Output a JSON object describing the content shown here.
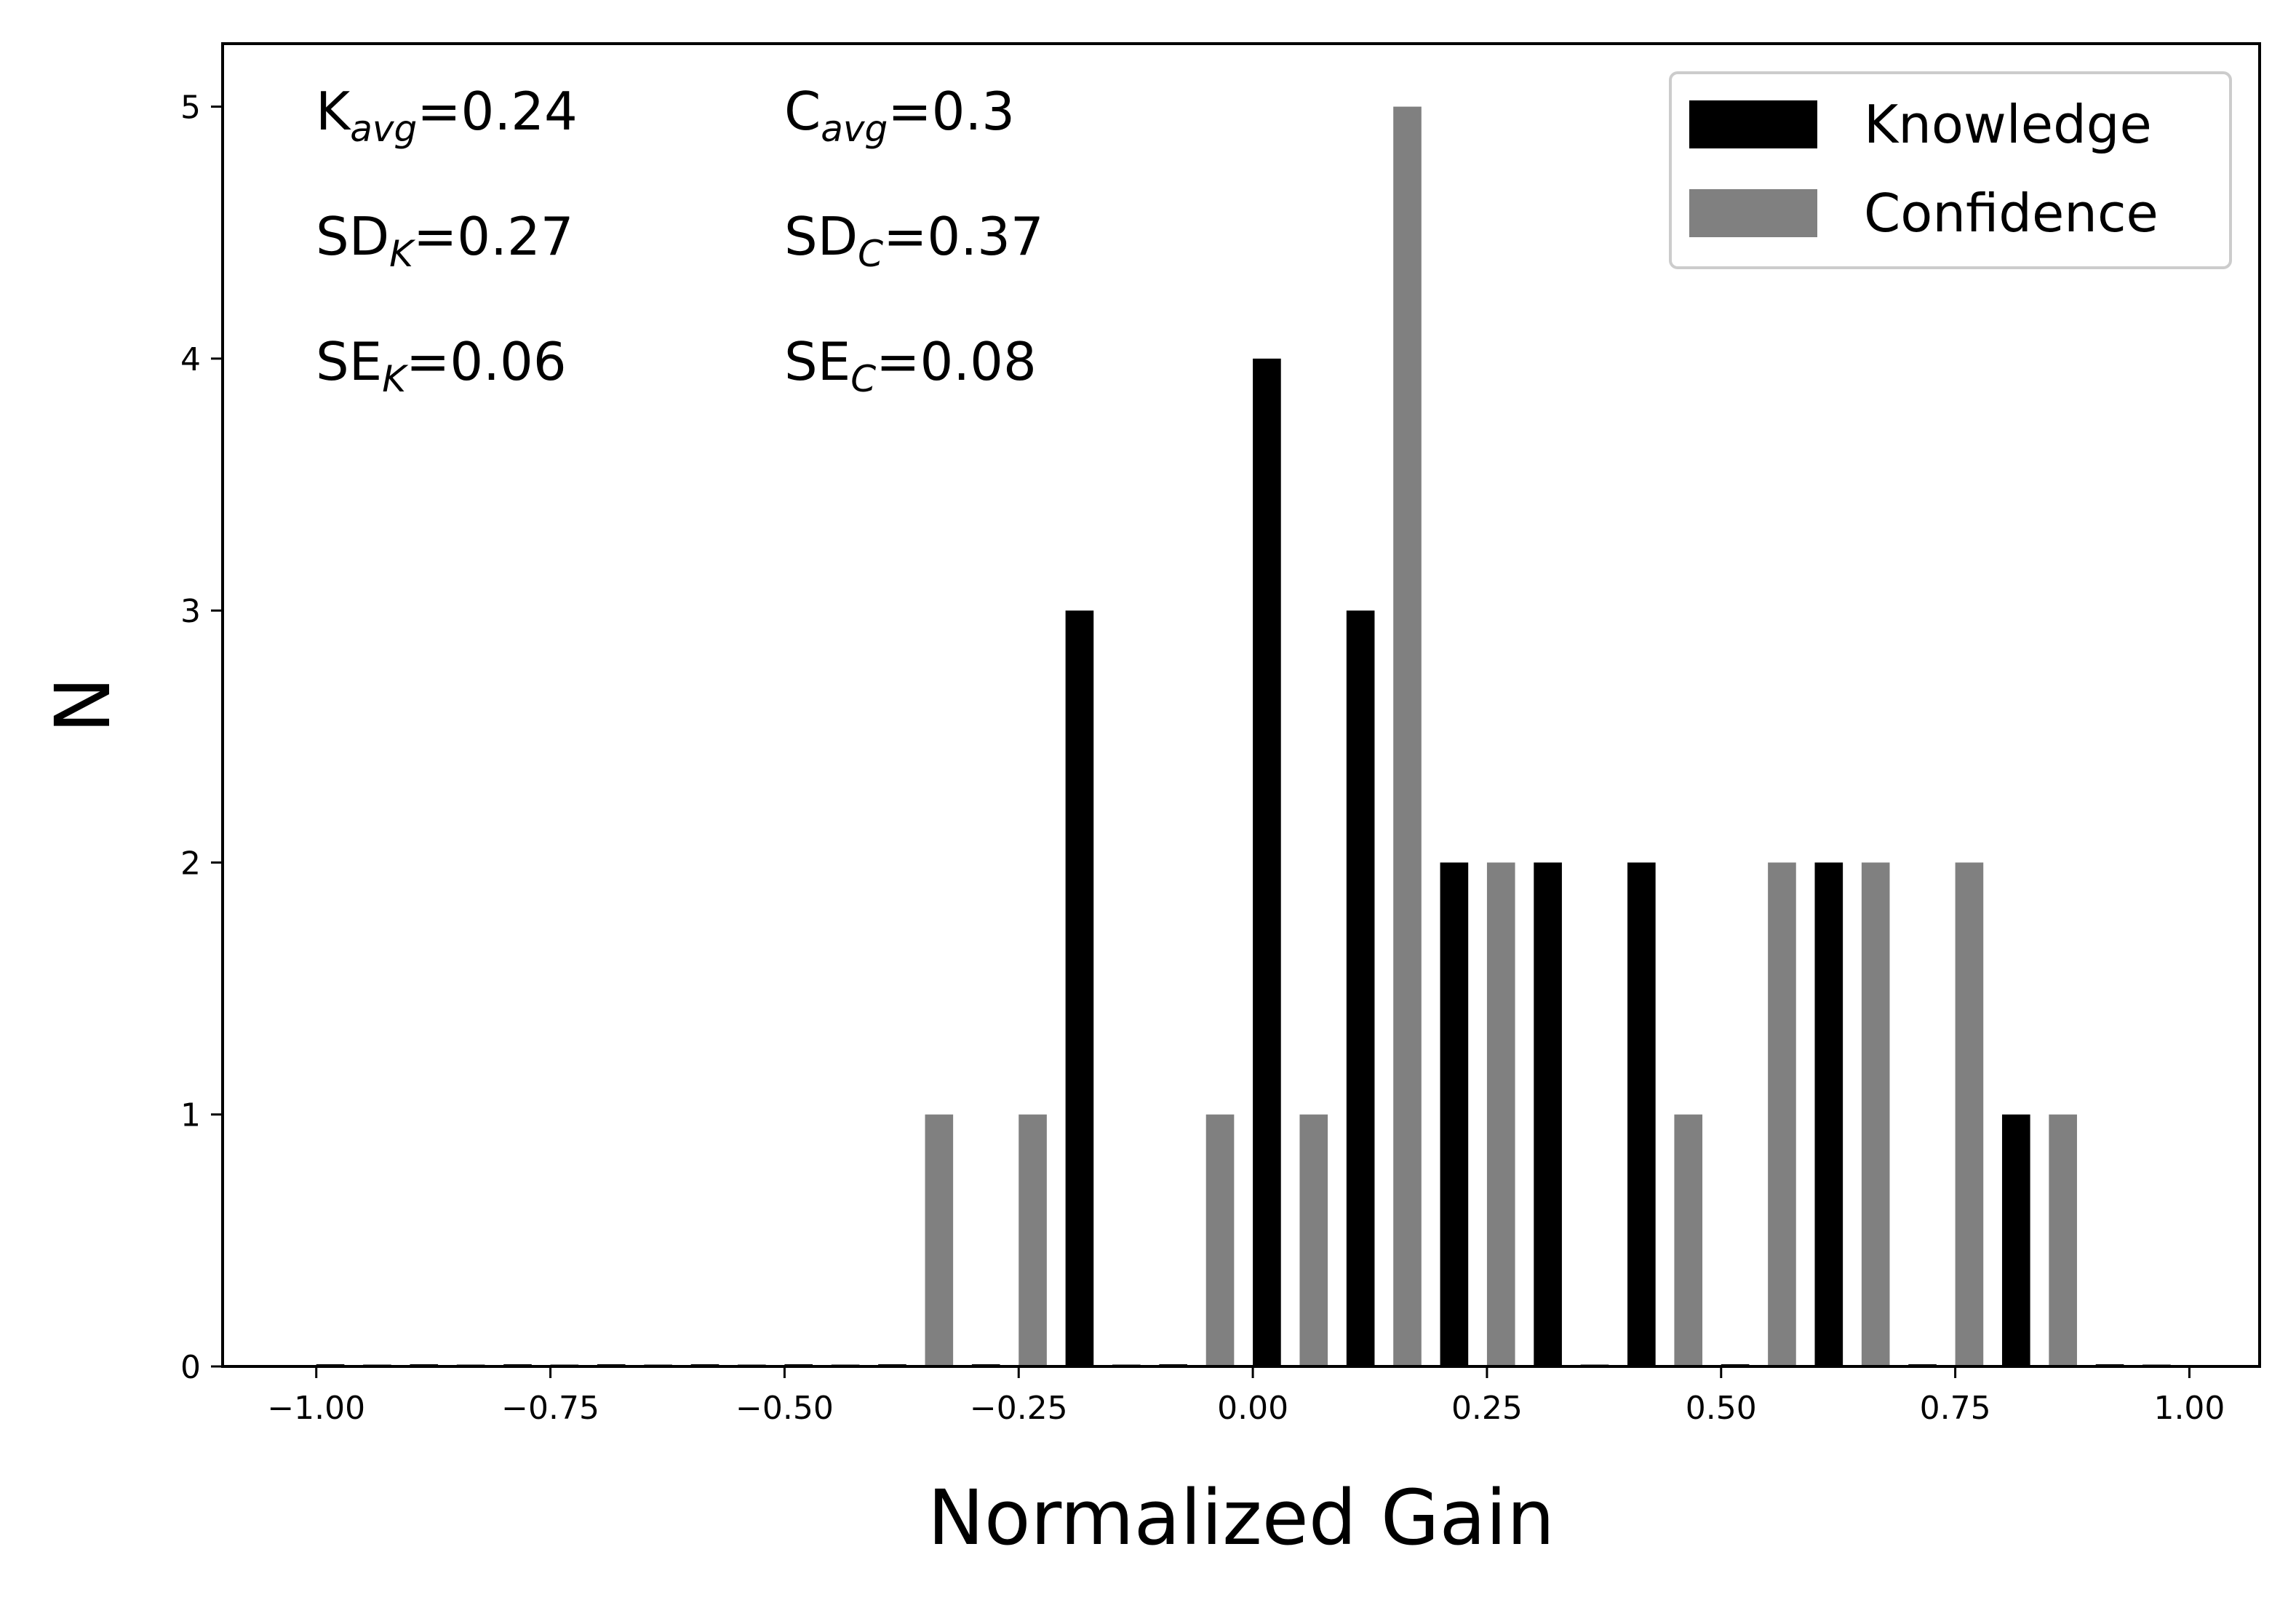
{
  "chart_data": {
    "type": "bar",
    "xlabel": "Normalized Gain",
    "ylabel": "N",
    "xlim": [
      -1.1,
      1.075
    ],
    "ylim": [
      0,
      5.25
    ],
    "xticks": [
      -1.0,
      -0.75,
      -0.5,
      -0.25,
      0.0,
      0.25,
      0.5,
      0.75,
      1.0
    ],
    "xtick_labels": [
      "−1.00",
      "−0.75",
      "−0.50",
      "−0.25",
      "0.00",
      "0.25",
      "0.50",
      "0.75",
      "1.00"
    ],
    "yticks": [
      0,
      1,
      2,
      3,
      4,
      5
    ],
    "ytick_labels": [
      "0",
      "1",
      "2",
      "3",
      "4",
      "5"
    ],
    "bin_starts": [
      -1.0,
      -0.9,
      -0.8,
      -0.7,
      -0.6,
      -0.5,
      -0.4,
      -0.3,
      -0.2,
      -0.1,
      0.0,
      0.1,
      0.2,
      0.3,
      0.4,
      0.5,
      0.6,
      0.7,
      0.8,
      0.9
    ],
    "series": [
      {
        "name": "Knowledge",
        "color": "#000000",
        "offset": 0.0,
        "values": [
          0,
          0,
          0,
          0,
          0,
          0,
          0,
          0,
          3,
          0,
          4,
          3,
          2,
          2,
          2,
          0,
          2,
          0,
          1,
          0
        ]
      },
      {
        "name": "Confidence",
        "color": "#808080",
        "offset": 0.05,
        "values": [
          0,
          0,
          0,
          0,
          0,
          0,
          1,
          1,
          0,
          1,
          1,
          5,
          2,
          0,
          1,
          2,
          2,
          2,
          1,
          0
        ]
      }
    ],
    "bar_width": 0.03,
    "legend_position": "top-right",
    "legend": [
      {
        "label": "Knowledge",
        "color": "#000000"
      },
      {
        "label": "Confidence",
        "color": "#808080"
      }
    ],
    "annotations": {
      "k_avg": {
        "base": "K",
        "sub": "avg",
        "value": "=0.24"
      },
      "c_avg": {
        "base": "C",
        "sub": "avg",
        "value": "=0.3"
      },
      "sd_k": {
        "base": "SD",
        "sub": "K",
        "value": "=0.27"
      },
      "sd_c": {
        "base": "SD",
        "sub": "C",
        "value": "=0.37"
      },
      "se_k": {
        "base": "SE",
        "sub": "K",
        "value": "=0.06"
      },
      "se_c": {
        "base": "SE",
        "sub": "C",
        "value": "=0.08"
      }
    }
  }
}
